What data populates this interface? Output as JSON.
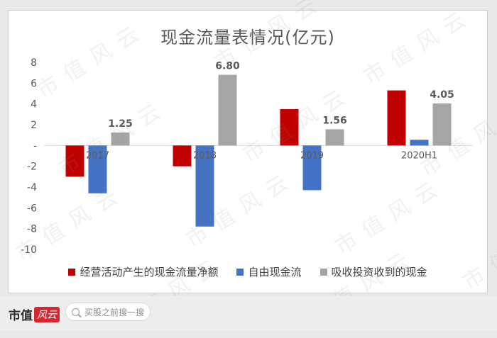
{
  "chart_data": {
    "type": "bar",
    "title": "现金流量表情况(亿元)",
    "categories": [
      "2017",
      "2018",
      "2019",
      "2020H1"
    ],
    "ylim": [
      -10,
      8
    ],
    "yticks": [
      "8",
      "6",
      "4",
      "2",
      "-",
      "-2",
      "-4",
      "-6",
      "-8",
      "-10"
    ],
    "ytick_values": [
      8,
      6,
      4,
      2,
      0,
      -2,
      -4,
      -6,
      -8,
      -10
    ],
    "grid": false,
    "legend_position": "bottom",
    "series": [
      {
        "name": "经营活动产生的现金流量净额",
        "color": "#c00000",
        "values": [
          -3.0,
          -2.0,
          3.5,
          5.3
        ]
      },
      {
        "name": "自由现金流",
        "color": "#4472c4",
        "values": [
          -4.6,
          -7.8,
          -4.3,
          0.55
        ]
      },
      {
        "name": "吸收投资收到的现金",
        "color": "#a5a5a5",
        "values": [
          1.25,
          6.8,
          1.56,
          4.05
        ],
        "labels": [
          "1.25",
          "6.80",
          "1.56",
          "4.05"
        ]
      }
    ]
  },
  "watermark": "市值风云",
  "footer": {
    "brand_text": "市值",
    "brand_badge": "风云",
    "search_placeholder": "买股之前搜一搜"
  }
}
